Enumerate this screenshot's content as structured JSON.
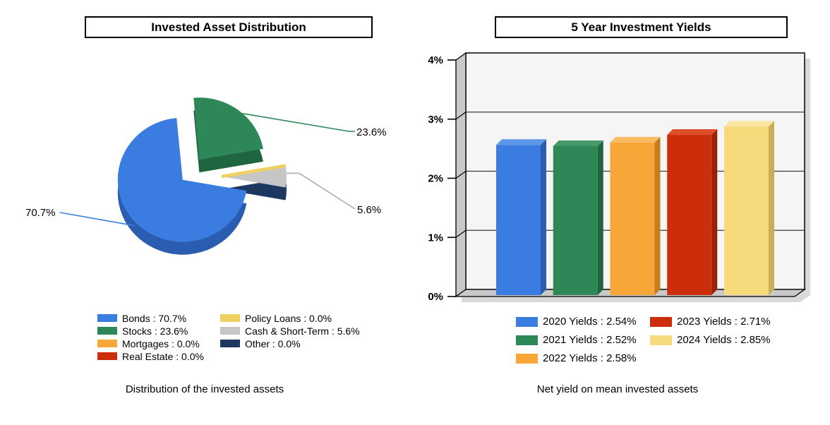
{
  "left_panel": {
    "title": "Invested Asset Distribution",
    "caption": "Distribution of the invested assets",
    "legend": [
      {
        "label": "Bonds : 70.7%",
        "color": "#3B7CE0"
      },
      {
        "label": "Stocks : 23.6%",
        "color": "#2E8756"
      },
      {
        "label": "Mortgages : 0.0%",
        "color": "#F6A738"
      },
      {
        "label": "Real Estate : 0.0%",
        "color": "#CC2E0B"
      },
      {
        "label": "Policy Loans : 0.0%",
        "color": "#EFD15F"
      },
      {
        "label": "Cash & Short-Term : 5.6%",
        "color": "#C6C6C6"
      },
      {
        "label": "Other : 0.0%",
        "color": "#1C3860"
      }
    ],
    "callouts": [
      {
        "label": "70.7%"
      },
      {
        "label": "23.6%"
      },
      {
        "label": "5.6%"
      }
    ]
  },
  "right_panel": {
    "title": "5 Year Investment Yields",
    "caption": "Net yield on mean invested assets",
    "legend": [
      {
        "label": "2020 Yields : 2.54%",
        "color": "#3B7CE0"
      },
      {
        "label": "2021 Yields : 2.52%",
        "color": "#2E8756"
      },
      {
        "label": "2022 Yields : 2.58%",
        "color": "#F6A738"
      },
      {
        "label": "2023 Yields : 2.71%",
        "color": "#CC2E0B"
      },
      {
        "label": "2024 Yields : 2.85%",
        "color": "#F7DA7B"
      }
    ]
  },
  "chart_data": [
    {
      "type": "pie",
      "style": "3d-exploded",
      "title": "Invested Asset Distribution",
      "labels": [
        "Bonds",
        "Stocks",
        "Mortgages",
        "Real Estate",
        "Policy Loans",
        "Cash & Short-Term",
        "Other"
      ],
      "values": [
        70.7,
        23.6,
        0.0,
        0.0,
        0.0,
        5.6,
        0.0
      ],
      "colors": [
        "#3B7CE0",
        "#2E8756",
        "#F6A738",
        "#CC2E0B",
        "#EFD15F",
        "#C6C6C6",
        "#1C3860"
      ],
      "side_colors": [
        "#2A5CB0",
        "#1E6540",
        "#C47E1E",
        "#992108",
        "#C9AE55",
        "#1C3860",
        "#10223C"
      ],
      "callout_labels": [
        "70.7%",
        "23.6%",
        "5.6%"
      ],
      "legend_position": "bottom"
    },
    {
      "type": "bar",
      "style": "3d",
      "title": "5 Year Investment Yields",
      "categories": [
        "2020 Yields",
        "2021 Yields",
        "2022 Yields",
        "2023 Yields",
        "2024 Yields"
      ],
      "values": [
        2.54,
        2.52,
        2.58,
        2.71,
        2.85
      ],
      "colors": [
        "#3B7CE0",
        "#2E8756",
        "#F6A738",
        "#CC2E0B",
        "#F7DA7B"
      ],
      "top_colors": [
        "#5E96E8",
        "#45996A",
        "#F8BC62",
        "#DD4F26",
        "#FAE69E"
      ],
      "side_colors": [
        "#2A5CB0",
        "#1E6540",
        "#C47E1E",
        "#992108",
        "#C9AE55"
      ],
      "ylabel": "",
      "xlabel": "",
      "ylim": [
        0,
        4
      ],
      "yticks": [
        "0%",
        "1%",
        "2%",
        "3%",
        "4%"
      ],
      "grid": true,
      "legend_position": "bottom"
    }
  ]
}
